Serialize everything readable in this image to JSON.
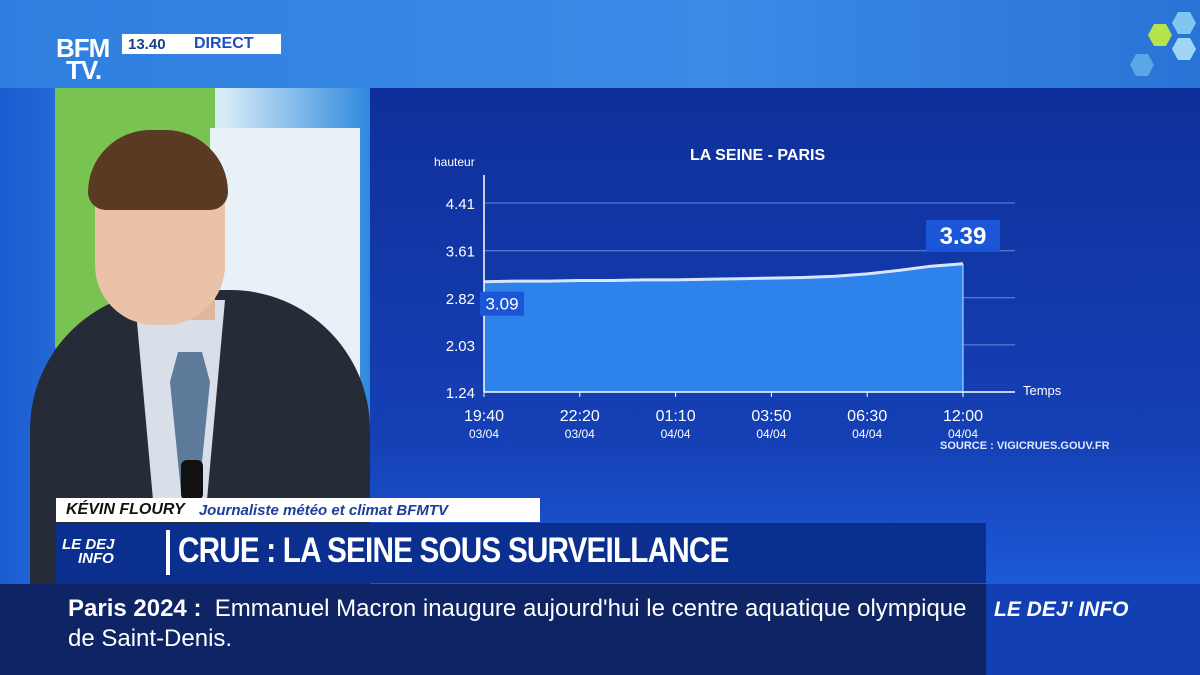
{
  "header": {
    "logo_line1": "BFM",
    "logo_line2": "TV.",
    "time": "13.40",
    "live_label": "DIRECT"
  },
  "chart_data": {
    "type": "area",
    "title": "LA SEINE - PARIS",
    "ylabel": "hauteur",
    "xlabel": "Temps",
    "yticks": [
      "4.41",
      "3.61",
      "2.82",
      "2.03",
      "1.24"
    ],
    "ylim": [
      1.24,
      4.41
    ],
    "xticks": [
      {
        "time": "19:40",
        "date": "03/04"
      },
      {
        "time": "22:20",
        "date": "03/04"
      },
      {
        "time": "01:10",
        "date": "04/04"
      },
      {
        "time": "03:50",
        "date": "04/04"
      },
      {
        "time": "06:30",
        "date": "04/04"
      },
      {
        "time": "12:00",
        "date": "04/04"
      }
    ],
    "series": [
      {
        "values": [
          3.09,
          3.1,
          3.1,
          3.11,
          3.11,
          3.12,
          3.12,
          3.13,
          3.14,
          3.15,
          3.16,
          3.18,
          3.22,
          3.28,
          3.35,
          3.39
        ],
        "x_fraction_note": "evenly spaced from 19:40 03/04 to 12:00 04/04"
      }
    ],
    "start_label": "3.09",
    "end_label": "3.39",
    "source": "SOURCE : VIGICRUES.GOUV.FR",
    "grid": "horizontal",
    "color": "#2f8cf0"
  },
  "lower_third": {
    "name": "KÉVIN FLOURY",
    "role": "Journaliste météo et climat BFMTV",
    "show_logo_line1": "LE DEJ",
    "show_logo_line2": "INFO",
    "headline": "CRUE : LA SEINE SOUS SURVEILLANCE"
  },
  "ticker": {
    "topic": "Paris 2024 :",
    "text": "Emmanuel Macron inaugure aujourd'hui le centre aquatique olympique de Saint-Denis."
  },
  "brand_tag": "LE DEJ' INFO"
}
